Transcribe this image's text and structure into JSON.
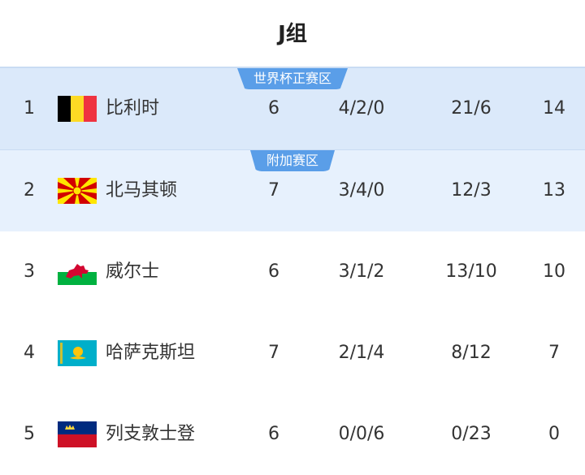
{
  "title": "J组",
  "zones": {
    "qualify": "世界杯正赛区",
    "playoff": "附加赛区"
  },
  "colors": {
    "accent": "#5a9ee8",
    "qualify_bg": "#dbe9fa",
    "playoff_bg": "#e7f1fd"
  },
  "rows": [
    {
      "rank": "1",
      "team": "比利时",
      "flag": "belgium-flag",
      "played": "6",
      "wdl": "4/2/0",
      "goals": "21/6",
      "points": "14"
    },
    {
      "rank": "2",
      "team": "北马其顿",
      "flag": "north-macedonia-flag",
      "played": "7",
      "wdl": "3/4/0",
      "goals": "12/3",
      "points": "13"
    },
    {
      "rank": "3",
      "team": "威尔士",
      "flag": "wales-flag",
      "played": "6",
      "wdl": "3/1/2",
      "goals": "13/10",
      "points": "10"
    },
    {
      "rank": "4",
      "team": "哈萨克斯坦",
      "flag": "kazakhstan-flag",
      "played": "7",
      "wdl": "2/1/4",
      "goals": "8/12",
      "points": "7"
    },
    {
      "rank": "5",
      "team": "列支敦士登",
      "flag": "liechtenstein-flag",
      "played": "6",
      "wdl": "0/0/6",
      "goals": "0/23",
      "points": "0"
    }
  ]
}
